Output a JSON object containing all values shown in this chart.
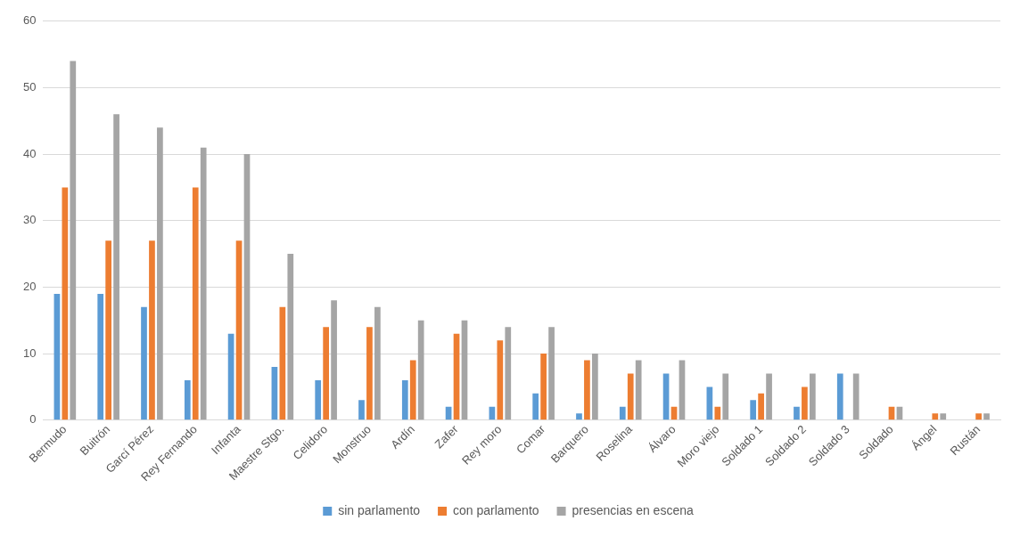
{
  "chart_data": {
    "type": "bar",
    "categories": [
      "Bermudo",
      "Buitrón",
      "Garcí Pérez",
      "Rey Fernando",
      "Infanta",
      "Maestre Stgo.",
      "Celidoro",
      "Monstruo",
      "Ardín",
      "Zafer",
      "Rey moro",
      "Comar",
      "Barquero",
      "Roselina",
      "Álvaro",
      "Moro viejo",
      "Soldado 1",
      "Soldado 2",
      "Soldado 3",
      "Soldado",
      "Ángel",
      "Rustán"
    ],
    "series": [
      {
        "name": "sin parlamento",
        "color": "#5b9bd5",
        "values": [
          19,
          19,
          17,
          6,
          13,
          8,
          6,
          3,
          6,
          2,
          2,
          4,
          1,
          2,
          7,
          5,
          3,
          2,
          7,
          0,
          0,
          0
        ]
      },
      {
        "name": "con parlamento",
        "color": "#ed7d31",
        "values": [
          35,
          27,
          27,
          35,
          27,
          17,
          14,
          14,
          9,
          13,
          12,
          10,
          9,
          7,
          2,
          2,
          4,
          5,
          0,
          2,
          1,
          1
        ]
      },
      {
        "name": "presencias en escena",
        "color": "#a5a5a5",
        "values": [
          54,
          46,
          44,
          41,
          40,
          25,
          18,
          17,
          15,
          15,
          14,
          14,
          10,
          9,
          9,
          7,
          7,
          7,
          7,
          2,
          1,
          1
        ]
      }
    ],
    "ylim": [
      0,
      60
    ],
    "yticks": [
      0,
      10,
      20,
      30,
      40,
      50,
      60
    ],
    "grid": "y",
    "legend": "bottom"
  }
}
